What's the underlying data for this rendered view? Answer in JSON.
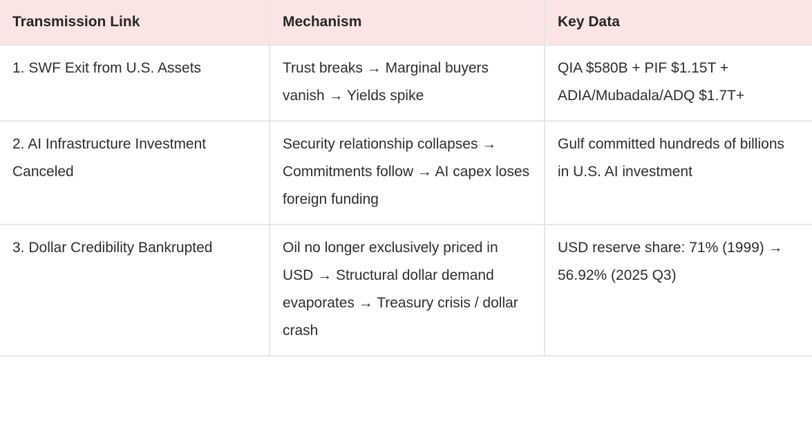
{
  "table": {
    "columns": [
      {
        "label": "Transmission Link"
      },
      {
        "label": "Mechanism"
      },
      {
        "label": "Key Data"
      }
    ],
    "rows": [
      {
        "link": "1. SWF Exit from U.S. Assets",
        "mechanism": "Trust breaks → Marginal buyers vanish → Yields spike",
        "key_data": "QIA $580B + PIF $1.15T + ADIA/Mubadala/ADQ $1.7T+"
      },
      {
        "link": "2. AI Infrastructure Investment Canceled",
        "mechanism": "Security relationship collapses → Commitments follow → AI capex loses foreign funding",
        "key_data": "Gulf committed hundreds of billions in U.S. AI investment"
      },
      {
        "link": "3. Dollar Credibility Bankrupted",
        "mechanism": "Oil no longer exclusively priced in USD → Structural dollar demand evaporates → Treasury crisis / dollar crash",
        "key_data": "USD reserve share: 71% (1999) → 56.92% (2025 Q3)"
      }
    ]
  },
  "colors": {
    "header_bg": "#fbe5e4",
    "border": "#e6e6e6",
    "text": "#2d2d2d"
  }
}
